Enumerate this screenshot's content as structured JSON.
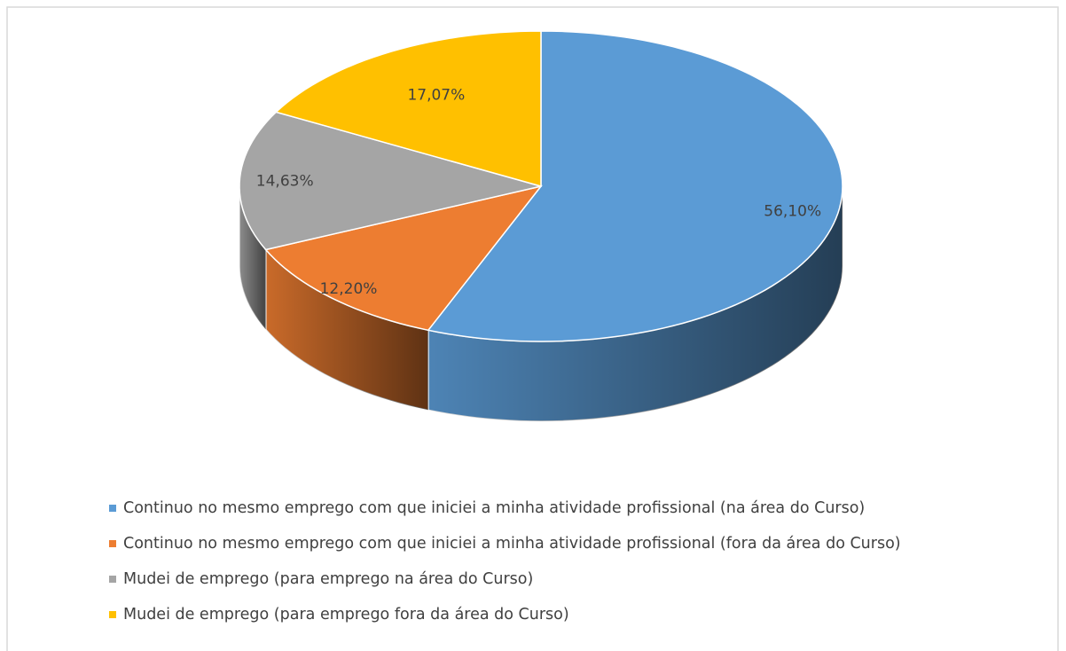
{
  "chart_data": {
    "type": "pie",
    "categories": [
      "Continuo no mesmo emprego com que iniciei a minha atividade profissional (na área do Curso)",
      "Continuo no mesmo emprego com que iniciei a minha atividade profissional (fora da área do Curso)",
      "Mudei de emprego (para emprego na área do Curso)",
      "Mudei de emprego (para emprego fora da área do Curso)"
    ],
    "values": [
      56.1,
      12.2,
      14.63,
      17.07
    ],
    "value_labels": [
      "56,10%",
      "12,20%",
      "14,63%",
      "17,07%"
    ],
    "colors": [
      "#5b9bd5",
      "#ed7d31",
      "#a5a5a5",
      "#ffc000"
    ],
    "legend": "bottom"
  }
}
